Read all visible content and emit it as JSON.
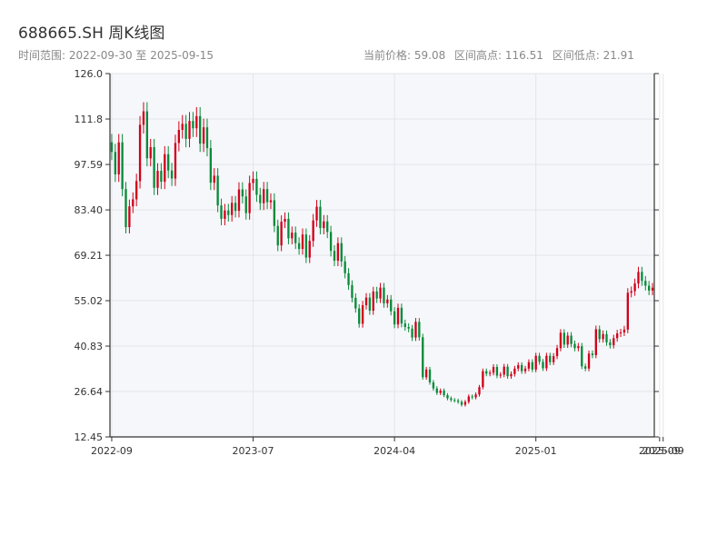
{
  "header": {
    "title": "688665.SH 周K线图",
    "range_label": "时间范围: 2022-09-30 至 2025-09-15",
    "current_price": "当前价格: 59.08",
    "interval_high": "区间高点: 116.51",
    "interval_low": "区间低点: 21.91"
  },
  "colors": {
    "up": "#d0021b",
    "down": "#0a8a3a",
    "plot_bg": "#f6f7fa",
    "grid": "#e3e5ea",
    "axis": "#333333"
  },
  "chart_data": {
    "type": "candlestick",
    "period": "weekly",
    "ylim": [
      12.45,
      126.0
    ],
    "yticks": [
      "126.0",
      "111.8",
      "97.59",
      "83.40",
      "69.21",
      "55.02",
      "40.83",
      "26.64",
      "12.45"
    ],
    "xticks": [
      {
        "label": "2022-09",
        "index": 0
      },
      {
        "label": "2023-07",
        "index": 40
      },
      {
        "label": "2024-04",
        "index": 80
      },
      {
        "label": "2025-01",
        "index": 120
      },
      {
        "label": "2025-09",
        "index": 155
      },
      {
        "label": "2025-09",
        "index": 156
      }
    ],
    "closes": [
      101.5,
      94.5,
      104.5,
      89.9,
      78.0,
      84.5,
      86.7,
      92.4,
      110.0,
      114.2,
      99.5,
      103.0,
      90.3,
      95.6,
      92.2,
      100.8,
      95.7,
      93.2,
      104.3,
      108.4,
      110.3,
      105.6,
      111.2,
      108.9,
      112.7,
      104.1,
      109.2,
      102.7,
      91.9,
      94.1,
      84.8,
      80.6,
      83.2,
      81.8,
      85.6,
      83.1,
      89.8,
      87.6,
      82.4,
      91.8,
      93.1,
      88.1,
      85.5,
      89.9,
      85.8,
      86.4,
      78.4,
      72.3,
      79.7,
      80.6,
      74.5,
      76.3,
      73.0,
      71.2,
      75.7,
      68.5,
      73.7,
      80.1,
      84.4,
      77.7,
      79.8,
      76.5,
      70.6,
      67.5,
      73.0,
      67.3,
      63.6,
      59.9,
      55.9,
      52.6,
      47.8,
      53.6,
      56.0,
      51.9,
      57.9,
      55.7,
      59.1,
      54.2,
      55.4,
      51.7,
      47.6,
      52.8,
      47.9,
      46.8,
      46.3,
      43.5,
      48.4,
      43.6,
      31.1,
      33.5,
      29.5,
      27.6,
      26.2,
      26.9,
      25.5,
      24.5,
      24.0,
      23.8,
      23.4,
      22.5,
      23.4,
      25.1,
      24.8,
      25.7,
      28.0,
      33.0,
      32.2,
      32.5,
      34.3,
      31.6,
      31.9,
      34.4,
      31.4,
      32.1,
      33.8,
      34.9,
      33.0,
      33.8,
      35.8,
      33.5,
      37.8,
      35.9,
      33.9,
      37.8,
      35.8,
      37.7,
      40.2,
      45.0,
      41.3,
      44.1,
      41.5,
      40.2,
      40.8,
      34.5,
      33.8,
      38.5,
      38.0,
      46.1,
      43.0,
      44.6,
      42.0,
      41.1,
      43.3,
      44.8,
      45.1,
      46.0,
      57.5,
      58.0,
      60.4,
      64.0,
      61.2,
      59.7,
      58.2,
      59.08
    ]
  }
}
